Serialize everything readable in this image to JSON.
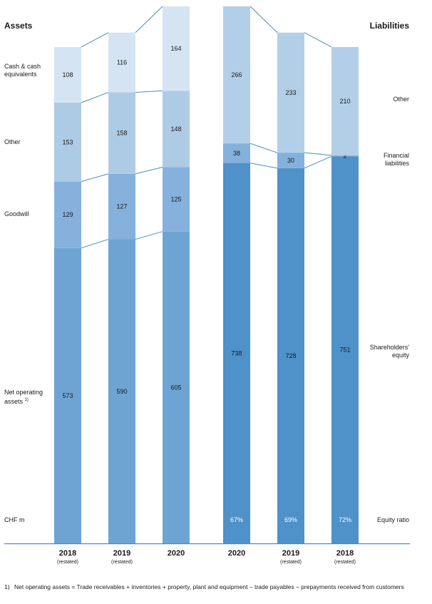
{
  "headers": {
    "assets": "Assets",
    "liabilities": "Liabilities"
  },
  "left_labels": {
    "cash": "Cash & cash equivalents",
    "other": "Other",
    "goodwill": "Goodwill",
    "net_operating": "Net operating assets",
    "net_operating_sup": "1)",
    "unit": "CHF m"
  },
  "right_labels": {
    "other": "Other",
    "financial": "Financial liabilities",
    "equity": "Shareholders' equity",
    "equity_ratio": "Equity ratio"
  },
  "footnote": {
    "marker": "1)",
    "text": "Net operating assets = Trade receivables + inventories + property, plant and equipment – trade payables – prepayments received from customers"
  },
  "colors": {
    "asset_net_operating": "#6ea4d3",
    "asset_goodwill": "#85b1dc",
    "asset_other": "#aecbe6",
    "asset_cash": "#d4e4f3",
    "liab_equity": "#4f91c9",
    "liab_financial": "#83b1dc",
    "liab_other": "#b3cfe8",
    "connector": "#4a8cc4",
    "baseline": "#4a8cc4"
  },
  "chart_data": {
    "type": "bar",
    "stacked": true,
    "unit": "CHF m",
    "assets": {
      "categories": [
        "2018",
        "2019",
        "2020"
      ],
      "category_notes": [
        "(restated)",
        "(restated)",
        ""
      ],
      "series": [
        {
          "name": "Net operating assets",
          "values": [
            573,
            590,
            605
          ]
        },
        {
          "name": "Goodwill",
          "values": [
            129,
            127,
            125
          ]
        },
        {
          "name": "Other",
          "values": [
            153,
            158,
            148
          ]
        },
        {
          "name": "Cash & cash equivalents",
          "values": [
            108,
            116,
            164
          ]
        }
      ]
    },
    "liabilities": {
      "categories": [
        "2020",
        "2019",
        "2018"
      ],
      "category_notes": [
        "",
        "(restated)",
        "(restated)"
      ],
      "series": [
        {
          "name": "Shareholders' equity",
          "values": [
            738,
            728,
            751
          ]
        },
        {
          "name": "Financial liabilities",
          "values": [
            38,
            30,
            2
          ]
        },
        {
          "name": "Other",
          "values": [
            266,
            233,
            210
          ]
        }
      ],
      "equity_ratio": [
        "67%",
        "69%",
        "72%"
      ]
    }
  }
}
